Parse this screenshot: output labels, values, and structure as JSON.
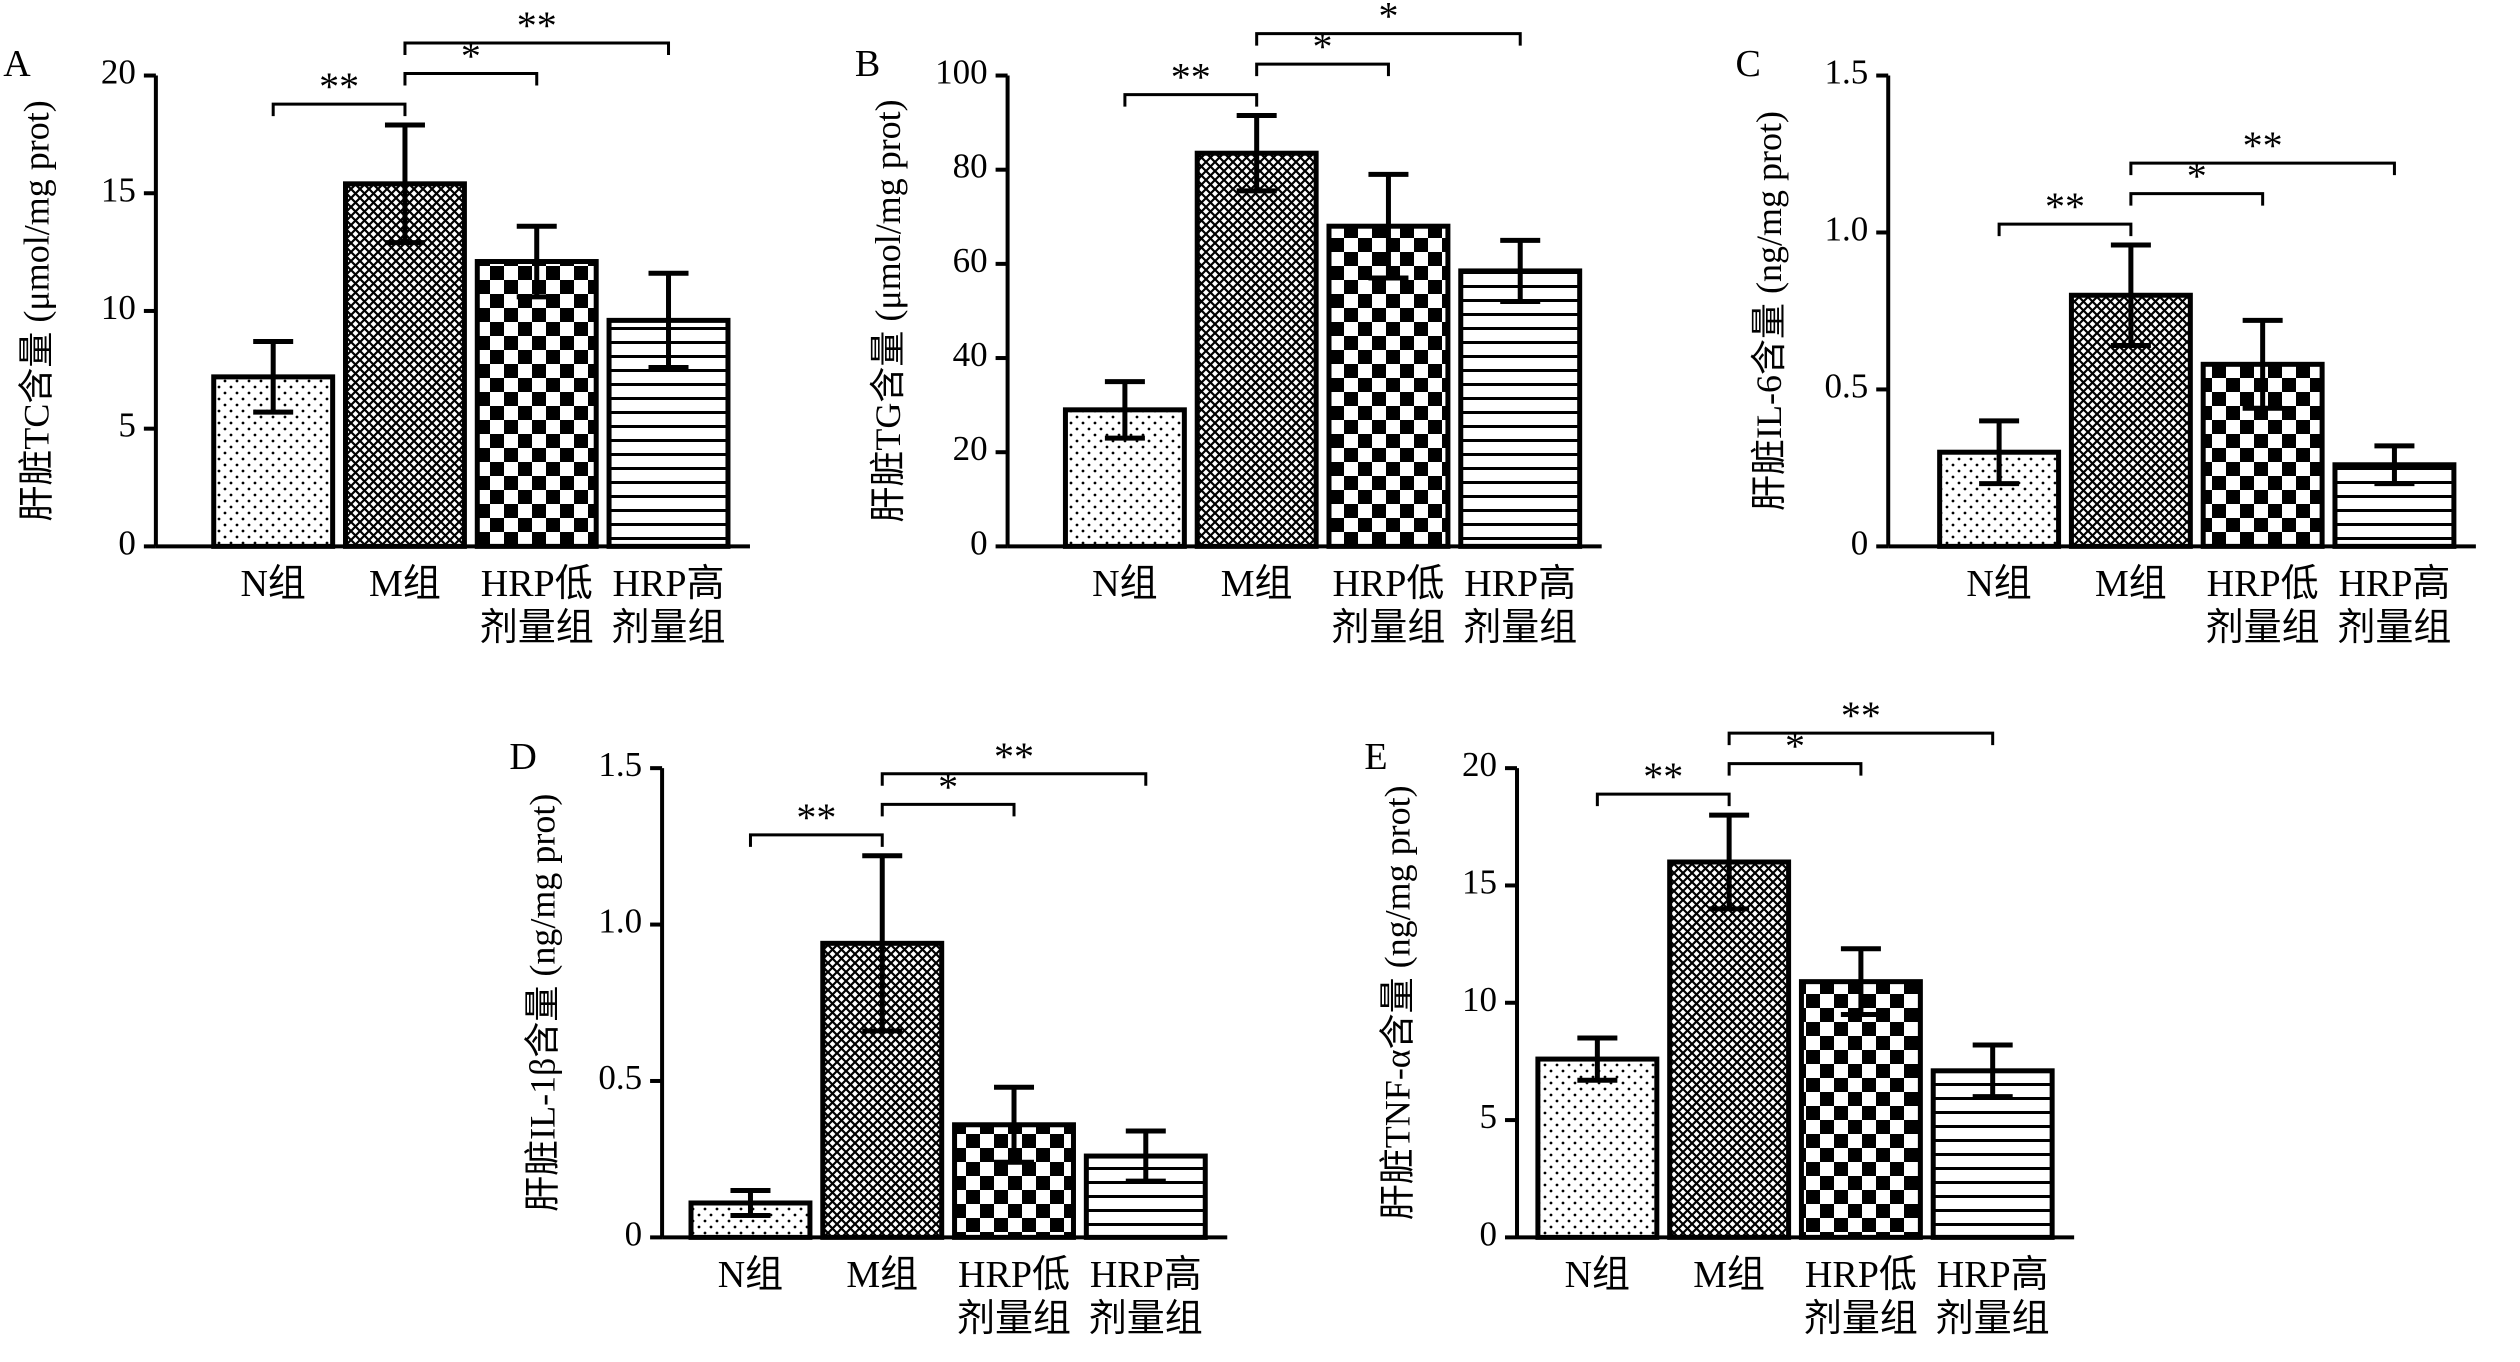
{
  "chart_data": [
    {
      "type": "bar",
      "panel": "A",
      "ylabel": "肝脏TC含量 (μmol/mg prot)",
      "categories": [
        "N组",
        "M组",
        "HRP低剂量组",
        "HRP高剂量组"
      ],
      "values": [
        7.2,
        15.4,
        12.1,
        9.6
      ],
      "errors": [
        1.5,
        2.5,
        1.5,
        2.0
      ],
      "patterns": [
        "dots",
        "crosshatch",
        "checker",
        "hlines"
      ],
      "color": "#000000",
      "ylim": [
        0,
        20
      ],
      "yticks": [
        0,
        5,
        10,
        15,
        20
      ],
      "annotations": [
        {
          "pair": [
            "N组",
            "M组"
          ],
          "label": "**"
        },
        {
          "pair": [
            "M组",
            "HRP低剂量组"
          ],
          "label": "*"
        },
        {
          "pair": [
            "M组",
            "HRP高剂量组"
          ],
          "label": "**"
        }
      ]
    },
    {
      "type": "bar",
      "panel": "B",
      "ylabel": "肝脏TG含量 (μmol/mg prot)",
      "categories": [
        "N组",
        "M组",
        "HRP低剂量组",
        "HRP高剂量组"
      ],
      "values": [
        29,
        83.5,
        68,
        58.5
      ],
      "errors": [
        6,
        8,
        11,
        6.5
      ],
      "patterns": [
        "dots",
        "crosshatch",
        "checker",
        "hlines"
      ],
      "color": "#000000",
      "ylim": [
        0,
        100
      ],
      "yticks": [
        0,
        20,
        40,
        60,
        80,
        100
      ],
      "annotations": [
        {
          "pair": [
            "N组",
            "M组"
          ],
          "label": "**"
        },
        {
          "pair": [
            "M组",
            "HRP低剂量组"
          ],
          "label": "*"
        },
        {
          "pair": [
            "M组",
            "HRP高剂量组"
          ],
          "label": "*"
        }
      ]
    },
    {
      "type": "bar",
      "panel": "C",
      "ylabel": "肝脏IL-6含量 (ng/mg prot)",
      "categories": [
        "N组",
        "M组",
        "HRP低剂量组",
        "HRP高剂量组"
      ],
      "values": [
        0.3,
        0.8,
        0.58,
        0.26
      ],
      "errors": [
        0.1,
        0.16,
        0.14,
        0.06
      ],
      "patterns": [
        "dots",
        "crosshatch",
        "checker",
        "hlines"
      ],
      "color": "#000000",
      "ylim": [
        0,
        1.5
      ],
      "yticks": [
        0,
        0.5,
        {
          "value": 1,
          "label": "1.0"
        },
        1.5
      ],
      "annotations": [
        {
          "pair": [
            "N组",
            "M组"
          ],
          "label": "**"
        },
        {
          "pair": [
            "M组",
            "HRP低剂量组"
          ],
          "label": "*"
        },
        {
          "pair": [
            "M组",
            "HRP高剂量组"
          ],
          "label": "**"
        }
      ]
    },
    {
      "type": "bar",
      "panel": "D",
      "ylabel": "肝脏IL-1β含量 (ng/mg prot)",
      "categories": [
        "N组",
        "M组",
        "HRP低剂量组",
        "HRP高剂量组"
      ],
      "values": [
        0.11,
        0.94,
        0.36,
        0.26
      ],
      "errors": [
        0.04,
        0.28,
        0.12,
        0.08
      ],
      "patterns": [
        "dots",
        "crosshatch",
        "checker",
        "hlines"
      ],
      "color": "#000000",
      "ylim": [
        0,
        1.5
      ],
      "yticks": [
        0,
        0.5,
        {
          "value": 1,
          "label": "1.0"
        },
        1.5
      ],
      "annotations": [
        {
          "pair": [
            "N组",
            "M组"
          ],
          "label": "**"
        },
        {
          "pair": [
            "M组",
            "HRP低剂量组"
          ],
          "label": "*"
        },
        {
          "pair": [
            "M组",
            "HRP高剂量组"
          ],
          "label": "**"
        }
      ]
    },
    {
      "type": "bar",
      "panel": "E",
      "ylabel": "肝脏TNF-α含量 (ng/mg prot)",
      "categories": [
        "N组",
        "M组",
        "HRP低剂量组",
        "HRP高剂量组"
      ],
      "values": [
        7.6,
        16,
        10.9,
        7.1
      ],
      "errors": [
        0.9,
        2.0,
        1.4,
        1.1
      ],
      "patterns": [
        "dots",
        "crosshatch",
        "checker",
        "hlines"
      ],
      "color": "#000000",
      "ylim": [
        0,
        20
      ],
      "yticks": [
        0,
        5,
        10,
        15,
        20
      ],
      "annotations": [
        {
          "pair": [
            "N组",
            "M组"
          ],
          "label": "**"
        },
        {
          "pair": [
            "M组",
            "HRP低剂量组"
          ],
          "label": "*"
        },
        {
          "pair": [
            "M组",
            "HRP高剂量组"
          ],
          "label": "**"
        }
      ]
    }
  ]
}
